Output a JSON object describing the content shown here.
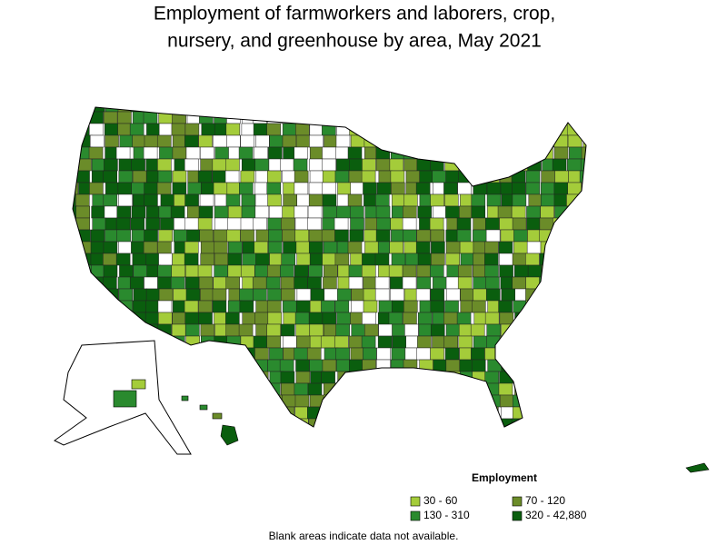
{
  "title": [
    "Employment of farmworkers and laborers, crop,",
    "nursery, and greenhouse by area, May 2021"
  ],
  "legend": {
    "title": "Employment",
    "items": [
      {
        "label": "30 - 60",
        "color": "#a4cc3a"
      },
      {
        "label": "70 - 120",
        "color": "#6b8c29"
      },
      {
        "label": "130 - 310",
        "color": "#2a8a2e"
      },
      {
        "label": "320 - 42,880",
        "color": "#0a5e0e"
      }
    ]
  },
  "note": "Blank areas indicate data not available."
}
